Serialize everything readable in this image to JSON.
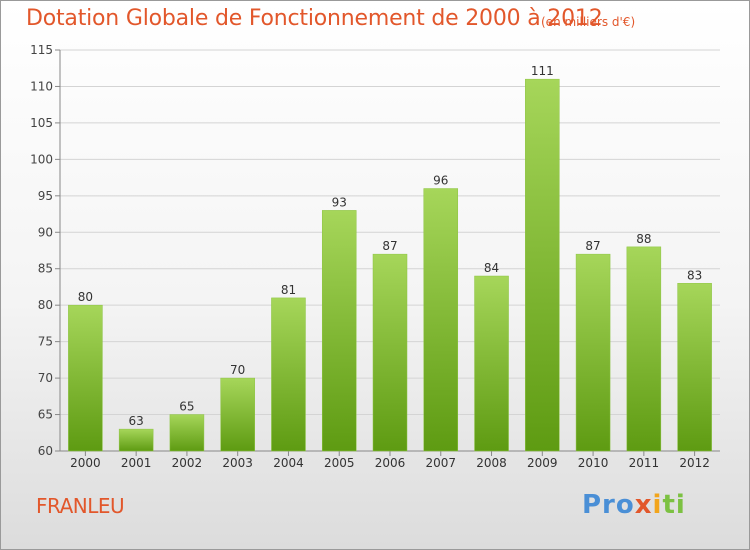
{
  "title": "Dotation Globale de Fonctionnement de 2000 à 2012",
  "unit": "(en milliers d'€)",
  "commune": "FRANLEU",
  "brand": [
    "Pro",
    "x",
    "i",
    "ti"
  ],
  "colors": {
    "bar_top": "#a6d65a",
    "bar_bottom": "#5e9b12",
    "title": "#e2572b",
    "grid": "#d4d4d4"
  },
  "chart_data": {
    "type": "bar",
    "title": "Dotation Globale de Fonctionnement de 2000 à 2012",
    "subtitle": "(en milliers d'€)",
    "categories": [
      "2000",
      "2001",
      "2002",
      "2003",
      "2004",
      "2005",
      "2006",
      "2007",
      "2008",
      "2009",
      "2010",
      "2011",
      "2012"
    ],
    "values": [
      80,
      63,
      65,
      70,
      81,
      93,
      87,
      96,
      84,
      111,
      87,
      88,
      83
    ],
    "ylim": [
      60,
      115
    ],
    "yticks": [
      60,
      65,
      70,
      75,
      80,
      85,
      90,
      95,
      100,
      105,
      110,
      115
    ],
    "grid": true,
    "data_labels": true
  }
}
